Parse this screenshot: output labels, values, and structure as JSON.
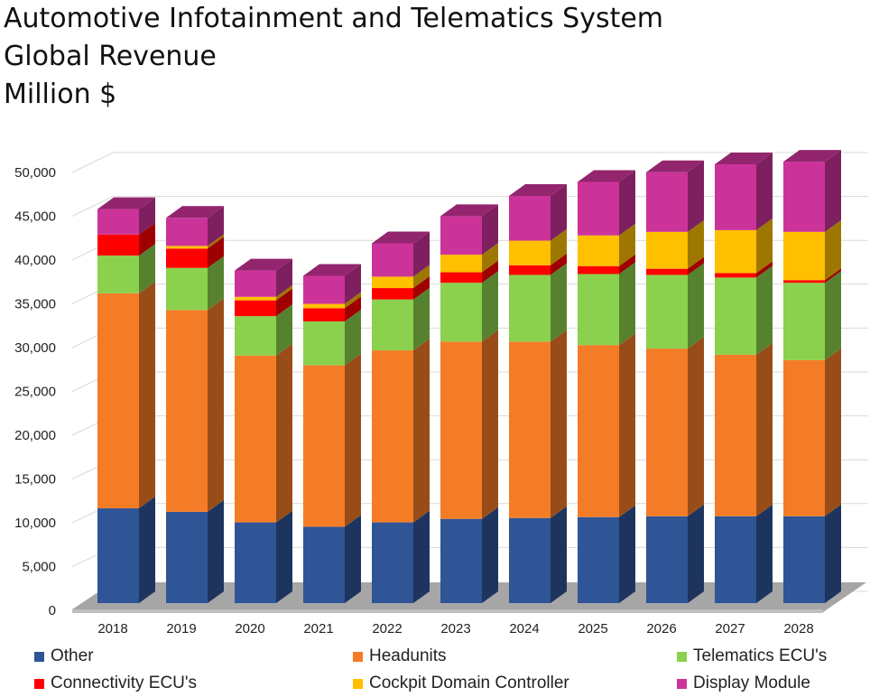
{
  "title_lines": [
    "Automotive Infotainment and Telematics System",
    "Global Revenue",
    "Million $"
  ],
  "chart_data": {
    "type": "bar",
    "stacked": true,
    "three_d": true,
    "title": "Automotive Infotainment and Telematics System Global Revenue Million $",
    "categories": [
      "2018",
      "2019",
      "2020",
      "2021",
      "2022",
      "2023",
      "2024",
      "2025",
      "2026",
      "2027",
      "2028"
    ],
    "ylim": [
      0,
      50000
    ],
    "yticks": [
      "0",
      "5,000",
      "10,000",
      "15,000",
      "20,000",
      "25,000",
      "30,000",
      "35,000",
      "40,000",
      "45,000",
      "50,000"
    ],
    "ytick_values": [
      0,
      5000,
      10000,
      15000,
      20000,
      25000,
      30000,
      35000,
      40000,
      45000,
      50000
    ],
    "grid": true,
    "legend_position": "bottom",
    "series": [
      {
        "name": "Other",
        "color": "#2f5597",
        "values": [
          10800,
          10400,
          9200,
          8700,
          9200,
          9600,
          9700,
          9800,
          9900,
          9900,
          9900
        ]
      },
      {
        "name": "Headunits",
        "color": "#f57c27",
        "values": [
          24500,
          23000,
          19000,
          18400,
          19600,
          20200,
          20100,
          19600,
          19100,
          18400,
          17800
        ]
      },
      {
        "name": "Telematics ECU's",
        "color": "#8bd14d",
        "values": [
          4300,
          4800,
          4500,
          5000,
          5800,
          6700,
          7600,
          8100,
          8400,
          8800,
          8800
        ]
      },
      {
        "name": "Connectivity ECU's",
        "color": "#ff0000",
        "values": [
          2400,
          2200,
          1800,
          1500,
          1300,
          1200,
          1100,
          900,
          700,
          500,
          300
        ]
      },
      {
        "name": "Cockpit Domain Controller",
        "color": "#ffc000",
        "values": [
          0,
          300,
          400,
          500,
          1300,
          2000,
          2800,
          3500,
          4200,
          4900,
          5500
        ]
      },
      {
        "name": "Display Module",
        "color": "#cc3399",
        "values": [
          2900,
          3200,
          3000,
          3200,
          3800,
          4400,
          5100,
          6100,
          6800,
          7500,
          8000
        ]
      }
    ]
  }
}
